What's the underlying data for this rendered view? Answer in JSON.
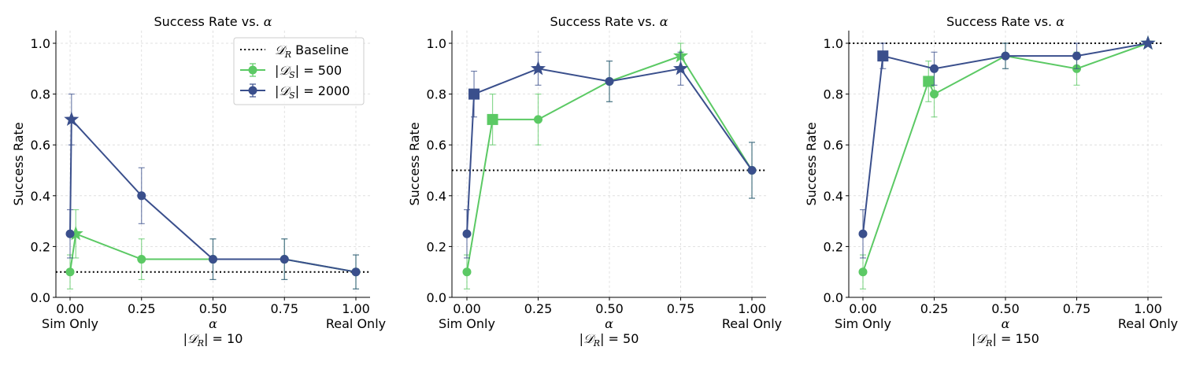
{
  "figure": {
    "colors": {
      "series_500": "#5bc964",
      "series_2000": "#3a4f8c",
      "baseline": "#000000",
      "grid": "#d9d9d9"
    }
  },
  "chart_data": [
    {
      "type": "line",
      "title": "Success Rate vs. α",
      "title_prefix": "Success Rate vs. ",
      "title_symbol": "α",
      "xlabel": "α",
      "subcaption_prefix": "|𝒟",
      "subcaption_sub": "R",
      "subcaption_suffix": "| = 10",
      "ylabel": "Success Rate",
      "xlim": [
        -0.05,
        1.05
      ],
      "ylim": [
        0.0,
        1.05
      ],
      "xticks": [
        0.0,
        0.25,
        0.5,
        0.75,
        1.0
      ],
      "xtick_labels": [
        "0.00",
        "0.25",
        "0.50",
        "0.75",
        "1.00"
      ],
      "xtick_extra_labels": {
        "0.00": "Sim Only",
        "1.00": "Real Only"
      },
      "yticks": [
        0.0,
        0.2,
        0.4,
        0.6,
        0.8,
        1.0
      ],
      "ytick_labels": [
        "0.0",
        "0.2",
        "0.4",
        "0.6",
        "0.8",
        "1.0"
      ],
      "grid": true,
      "baseline": {
        "label": "𝒟R Baseline",
        "value": 0.1
      },
      "legend": {
        "show": true,
        "placement": "top-right",
        "entries": [
          {
            "kind": "baseline",
            "prefix": "𝒟",
            "sub": "R",
            "suffix": " Baseline"
          },
          {
            "kind": "series",
            "series": 0,
            "prefix": "|𝒟",
            "sub": "S",
            "suffix": "| = 500"
          },
          {
            "kind": "series",
            "series": 1,
            "prefix": "|𝒟",
            "sub": "S",
            "suffix": "| = 2000"
          }
        ]
      },
      "series": [
        {
          "name": "|DS| = 500",
          "color_key": "series_500",
          "points": [
            {
              "x": 0.0,
              "y": 0.1,
              "err": [
                0.033,
                0.167
              ],
              "marker": "circle"
            },
            {
              "x": 0.02,
              "y": 0.25,
              "err": [
                0.155,
                0.345
              ],
              "marker": "star"
            },
            {
              "x": 0.25,
              "y": 0.15,
              "err": [
                0.07,
                0.23
              ],
              "marker": "circle"
            },
            {
              "x": 0.5,
              "y": 0.15,
              "err": [
                0.07,
                0.23
              ],
              "marker": "circle"
            },
            {
              "x": 0.75,
              "y": 0.15,
              "err": [
                0.07,
                0.23
              ],
              "marker": "circle"
            },
            {
              "x": 1.0,
              "y": 0.1,
              "err": [
                0.033,
                0.167
              ],
              "marker": "circle"
            }
          ]
        },
        {
          "name": "|DS| = 2000",
          "color_key": "series_2000",
          "points": [
            {
              "x": 0.0,
              "y": 0.25,
              "err": [
                0.155,
                0.345
              ],
              "marker": "circle"
            },
            {
              "x": 0.005,
              "y": 0.7,
              "err": [
                0.6,
                0.8
              ],
              "marker": "star"
            },
            {
              "x": 0.25,
              "y": 0.4,
              "err": [
                0.29,
                0.51
              ],
              "marker": "circle"
            },
            {
              "x": 0.5,
              "y": 0.15,
              "err": [
                0.07,
                0.23
              ],
              "marker": "circle"
            },
            {
              "x": 0.75,
              "y": 0.15,
              "err": [
                0.07,
                0.23
              ],
              "marker": "circle"
            },
            {
              "x": 1.0,
              "y": 0.1,
              "err": [
                0.033,
                0.167
              ],
              "marker": "circle"
            }
          ]
        }
      ]
    },
    {
      "type": "line",
      "title": "Success Rate vs. α",
      "title_prefix": "Success Rate vs. ",
      "title_symbol": "α",
      "xlabel": "α",
      "subcaption_prefix": "|𝒟",
      "subcaption_sub": "R",
      "subcaption_suffix": "| = 50",
      "ylabel": "Success Rate",
      "xlim": [
        -0.05,
        1.05
      ],
      "ylim": [
        0.0,
        1.05
      ],
      "xticks": [
        0.0,
        0.25,
        0.5,
        0.75,
        1.0
      ],
      "xtick_labels": [
        "0.00",
        "0.25",
        "0.50",
        "0.75",
        "1.00"
      ],
      "xtick_extra_labels": {
        "0.00": "Sim Only",
        "1.00": "Real Only"
      },
      "yticks": [
        0.0,
        0.2,
        0.4,
        0.6,
        0.8,
        1.0
      ],
      "ytick_labels": [
        "0.0",
        "0.2",
        "0.4",
        "0.6",
        "0.8",
        "1.0"
      ],
      "grid": true,
      "baseline": {
        "label": "𝒟R Baseline",
        "value": 0.5
      },
      "legend": {
        "show": false
      },
      "series": [
        {
          "name": "|DS| = 500",
          "color_key": "series_500",
          "points": [
            {
              "x": 0.0,
              "y": 0.1,
              "err": [
                0.033,
                0.167
              ],
              "marker": "circle"
            },
            {
              "x": 0.09,
              "y": 0.7,
              "err": [
                0.6,
                0.8
              ],
              "marker": "square"
            },
            {
              "x": 0.25,
              "y": 0.7,
              "err": [
                0.6,
                0.8
              ],
              "marker": "circle"
            },
            {
              "x": 0.5,
              "y": 0.85,
              "err": [
                0.77,
                0.93
              ],
              "marker": "circle"
            },
            {
              "x": 0.75,
              "y": 0.95,
              "err": [
                0.9,
                1.0
              ],
              "marker": "star"
            },
            {
              "x": 1.0,
              "y": 0.5,
              "err": [
                0.39,
                0.61
              ],
              "marker": "circle"
            }
          ]
        },
        {
          "name": "|DS| = 2000",
          "color_key": "series_2000",
          "points": [
            {
              "x": 0.0,
              "y": 0.25,
              "err": [
                0.155,
                0.345
              ],
              "marker": "circle"
            },
            {
              "x": 0.025,
              "y": 0.8,
              "err": [
                0.71,
                0.89
              ],
              "marker": "square"
            },
            {
              "x": 0.25,
              "y": 0.9,
              "err": [
                0.835,
                0.965
              ],
              "marker": "star"
            },
            {
              "x": 0.5,
              "y": 0.85,
              "err": [
                0.77,
                0.93
              ],
              "marker": "circle"
            },
            {
              "x": 0.75,
              "y": 0.9,
              "err": [
                0.835,
                0.965
              ],
              "marker": "star"
            },
            {
              "x": 1.0,
              "y": 0.5,
              "err": [
                0.39,
                0.61
              ],
              "marker": "circle"
            }
          ]
        }
      ]
    },
    {
      "type": "line",
      "title": "Success Rate vs. α",
      "title_prefix": "Success Rate vs. ",
      "title_symbol": "α",
      "xlabel": "α",
      "subcaption_prefix": "|𝒟",
      "subcaption_sub": "R",
      "subcaption_suffix": "| = 150",
      "ylabel": "Success Rate",
      "xlim": [
        -0.05,
        1.05
      ],
      "ylim": [
        0.0,
        1.05
      ],
      "xticks": [
        0.0,
        0.25,
        0.5,
        0.75,
        1.0
      ],
      "xtick_labels": [
        "0.00",
        "0.25",
        "0.50",
        "0.75",
        "1.00"
      ],
      "xtick_extra_labels": {
        "0.00": "Sim Only",
        "1.00": "Real Only"
      },
      "yticks": [
        0.0,
        0.2,
        0.4,
        0.6,
        0.8,
        1.0
      ],
      "ytick_labels": [
        "0.0",
        "0.2",
        "0.4",
        "0.6",
        "0.8",
        "1.0"
      ],
      "grid": true,
      "baseline": {
        "label": "𝒟R Baseline",
        "value": 1.0
      },
      "legend": {
        "show": false
      },
      "series": [
        {
          "name": "|DS| = 500",
          "color_key": "series_500",
          "points": [
            {
              "x": 0.0,
              "y": 0.1,
              "err": [
                0.033,
                0.167
              ],
              "marker": "circle"
            },
            {
              "x": 0.23,
              "y": 0.85,
              "err": [
                0.77,
                0.93
              ],
              "marker": "square"
            },
            {
              "x": 0.25,
              "y": 0.8,
              "err": [
                0.71,
                0.89
              ],
              "marker": "circle"
            },
            {
              "x": 0.5,
              "y": 0.95,
              "err": [
                0.9,
                1.0
              ],
              "marker": "circle"
            },
            {
              "x": 0.75,
              "y": 0.9,
              "err": [
                0.835,
                0.965
              ],
              "marker": "circle"
            },
            {
              "x": 1.0,
              "y": 1.0,
              "err": [
                1.0,
                1.0
              ],
              "marker": "star"
            }
          ]
        },
        {
          "name": "|DS| = 2000",
          "color_key": "series_2000",
          "points": [
            {
              "x": 0.0,
              "y": 0.25,
              "err": [
                0.155,
                0.345
              ],
              "marker": "circle"
            },
            {
              "x": 0.07,
              "y": 0.95,
              "err": [
                0.9,
                1.0
              ],
              "marker": "square"
            },
            {
              "x": 0.25,
              "y": 0.9,
              "err": [
                0.835,
                0.965
              ],
              "marker": "circle"
            },
            {
              "x": 0.5,
              "y": 0.95,
              "err": [
                0.9,
                1.0
              ],
              "marker": "circle"
            },
            {
              "x": 0.75,
              "y": 0.95,
              "err": [
                0.9,
                1.0
              ],
              "marker": "circle"
            },
            {
              "x": 1.0,
              "y": 1.0,
              "err": [
                1.0,
                1.0
              ],
              "marker": "star"
            }
          ]
        }
      ]
    }
  ]
}
